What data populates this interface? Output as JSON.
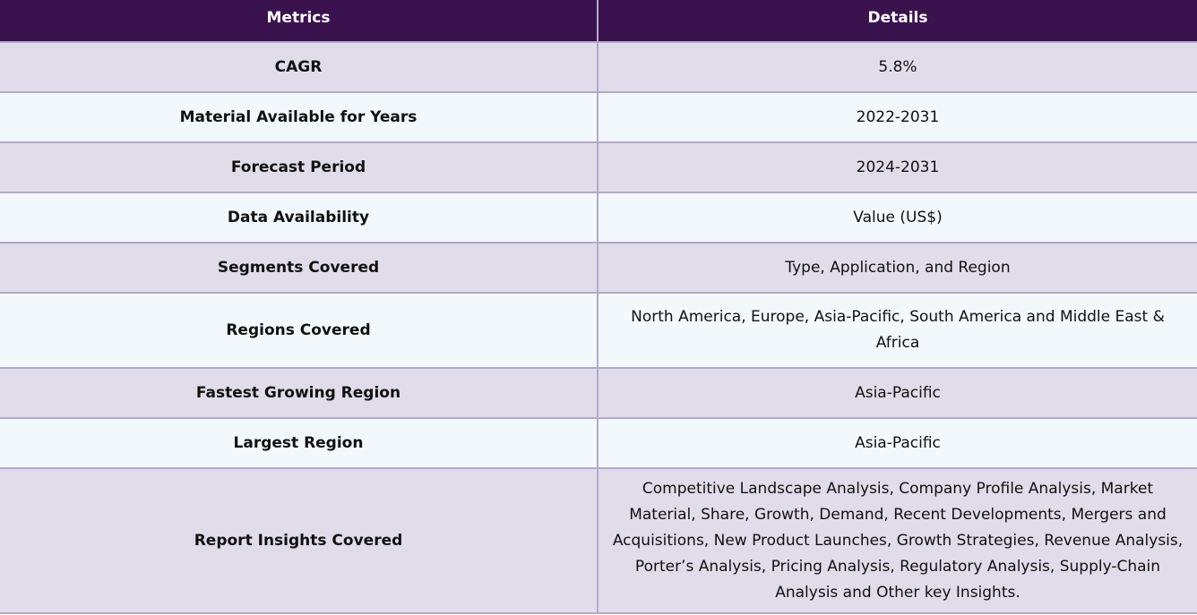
{
  "header": {
    "metrics": "Metrics",
    "details": "Details"
  },
  "rows": [
    {
      "metric": "CAGR",
      "detail": "5.8%"
    },
    {
      "metric": "Material Available for Years",
      "detail": "2022-2031"
    },
    {
      "metric": "Forecast Period",
      "detail": "2024-2031"
    },
    {
      "metric": "Data Availability",
      "detail": "Value (US$)"
    },
    {
      "metric": "Segments Covered",
      "detail": "Type, Application, and Region"
    },
    {
      "metric": "Regions Covered",
      "detail": "North America, Europe, Asia-Pacific, South America and Middle East & Africa"
    },
    {
      "metric": "Fastest Growing Region",
      "detail": "Asia-Pacific"
    },
    {
      "metric": "Largest Region",
      "detail": "Asia-Pacific"
    },
    {
      "metric": "Report Insights Covered",
      "detail": "Competitive Landscape Analysis, Company Profile Analysis, Market Material, Share, Growth, Demand, Recent Developments, Mergers and Acquisitions, New Product Launches, Growth Strategies, Revenue Analysis, Porter’s Analysis, Pricing Analysis, Regulatory Analysis, Supply-Chain Analysis and Other key Insights."
    }
  ],
  "colors": {
    "header_bg": "#3a124d",
    "row_odd": "#e0dcea",
    "row_even": "#f3f8fc",
    "grid": "#b3a9c9"
  }
}
